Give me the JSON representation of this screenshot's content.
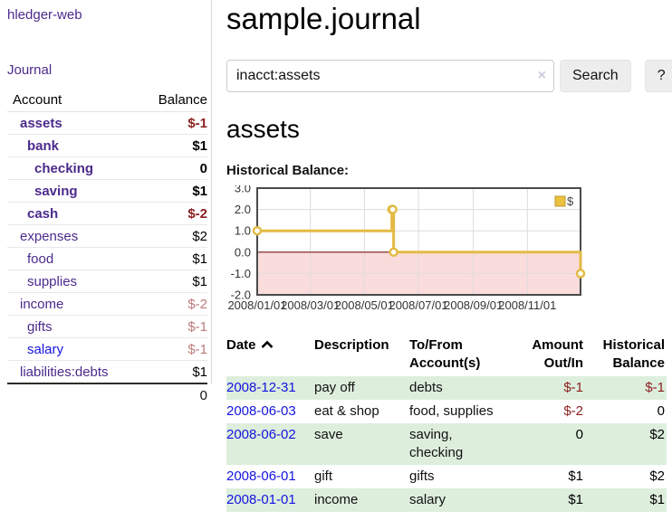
{
  "colors": {
    "link_purple": "#4c2a8c",
    "link_blue": "#1414e0",
    "negative_strong": "#8b1e1e",
    "negative_muted": "#bb7b7b",
    "text_black": "#000000",
    "row_stripe_green": "#ddeedd",
    "chart_line": "#e3ba45",
    "chart_legend_fill": "#eac23f",
    "chart_legend_border": "#bf992f",
    "chart_fill_negative": "#fadcdc",
    "chart_zero_line": "#7d1a1a",
    "chart_grid": "#dcdcdc",
    "chart_border": "#4a4a4a",
    "axis_text": "#333333"
  },
  "sidebar": {
    "brand": "hledger-web",
    "journal_link": "Journal",
    "accounts_table": {
      "headers": [
        "Account",
        "Balance"
      ],
      "rows": [
        {
          "name": "assets",
          "depth": 1,
          "bold": true,
          "name_color": "#4c2a8c",
          "balance": "$-1",
          "balance_color": "#8b1e1e"
        },
        {
          "name": "bank",
          "depth": 2,
          "bold": true,
          "name_color": "#4c2a8c",
          "balance": "$1",
          "balance_color": "#000000"
        },
        {
          "name": "checking",
          "depth": 3,
          "bold": true,
          "name_color": "#4c2a8c",
          "balance": "0",
          "balance_color": "#000000"
        },
        {
          "name": "saving",
          "depth": 3,
          "bold": true,
          "name_color": "#4c2a8c",
          "balance": "$1",
          "balance_color": "#000000"
        },
        {
          "name": "cash",
          "depth": 2,
          "bold": true,
          "name_color": "#4c2a8c",
          "balance": "$-2",
          "balance_color": "#8b1e1e"
        },
        {
          "name": "expenses",
          "depth": 1,
          "bold": false,
          "name_color": "#4c2a8c",
          "balance": "$2",
          "balance_color": "#000000"
        },
        {
          "name": "food",
          "depth": 2,
          "bold": false,
          "name_color": "#4c2a8c",
          "balance": "$1",
          "balance_color": "#000000"
        },
        {
          "name": "supplies",
          "depth": 2,
          "bold": false,
          "name_color": "#4c2a8c",
          "balance": "$1",
          "balance_color": "#000000"
        },
        {
          "name": "income",
          "depth": 1,
          "bold": false,
          "name_color": "#4c2a8c",
          "balance": "$-2",
          "balance_color": "#bb7b7b"
        },
        {
          "name": "gifts",
          "depth": 2,
          "bold": false,
          "name_color": "#4c2a8c",
          "balance": "$-1",
          "balance_color": "#bb7b7b"
        },
        {
          "name": "salary",
          "depth": 2,
          "bold": false,
          "name_color": "#1414e0",
          "balance": "$-1",
          "balance_color": "#bb7b7b"
        },
        {
          "name": "liabilities:debts",
          "depth": 1,
          "bold": false,
          "name_color": "#4c2a8c",
          "balance": "$1",
          "balance_color": "#000000"
        }
      ],
      "total": "0"
    }
  },
  "header": {
    "title": "sample.journal"
  },
  "search": {
    "value": "inacct:assets",
    "clear_icon": "×",
    "button_label": "Search",
    "help_label": "?"
  },
  "account_page": {
    "heading": "assets",
    "chart_label": "Historical Balance:"
  },
  "chart_data": {
    "type": "line",
    "style": "step",
    "title": "Historical Balance",
    "xlabel": "",
    "ylabel": "",
    "x_range": [
      "2008-01-01",
      "2008-12-31"
    ],
    "ylim": [
      -2,
      3
    ],
    "yticks": [
      3,
      2,
      1,
      0,
      -1,
      -2
    ],
    "xticks": [
      {
        "date": "2008-01-01",
        "label": "2008/01/01"
      },
      {
        "date": "2008-03-01",
        "label": "2008/03/01"
      },
      {
        "date": "2008-05-01",
        "label": "2008/05/01"
      },
      {
        "date": "2008-07-01",
        "label": "2008/07/01"
      },
      {
        "date": "2008-09-01",
        "label": "2008/09/01"
      },
      {
        "date": "2008-11-01",
        "label": "2008/11/01"
      }
    ],
    "grid": true,
    "legend": {
      "label": "$",
      "position": "top-right"
    },
    "negative_region_shaded": true,
    "series": [
      {
        "name": "$",
        "points": [
          {
            "date": "2008-01-01",
            "value": 1
          },
          {
            "date": "2008-06-01",
            "value": 2
          },
          {
            "date": "2008-06-02",
            "value": 2
          },
          {
            "date": "2008-06-03",
            "value": 0
          },
          {
            "date": "2008-12-31",
            "value": -1
          }
        ]
      }
    ]
  },
  "register_table": {
    "headers": [
      {
        "label": "Date",
        "sorted_ascending": true
      },
      {
        "label": "Description"
      },
      {
        "label": "To/From Account(s)"
      },
      {
        "label": "Amount Out/In",
        "align": "right"
      },
      {
        "label": "Historical Balance",
        "align": "right"
      }
    ],
    "rows": [
      {
        "date": "2008-12-31",
        "description": "pay off",
        "accounts": "debts",
        "amount": "$-1",
        "amount_color": "#8b1e1e",
        "balance": "$-1",
        "balance_color": "#8b1e1e"
      },
      {
        "date": "2008-06-03",
        "description": "eat & shop",
        "accounts": "food, supplies",
        "amount": "$-2",
        "amount_color": "#8b1e1e",
        "balance": "0",
        "balance_color": "#000000"
      },
      {
        "date": "2008-06-02",
        "description": "save",
        "accounts": "saving, checking",
        "amount": "0",
        "amount_color": "#000000",
        "balance": "$2",
        "balance_color": "#000000"
      },
      {
        "date": "2008-06-01",
        "description": "gift",
        "accounts": "gifts",
        "amount": "$1",
        "amount_color": "#000000",
        "balance": "$2",
        "balance_color": "#000000"
      },
      {
        "date": "2008-01-01",
        "description": "income",
        "accounts": "salary",
        "amount": "$1",
        "amount_color": "#000000",
        "balance": "$1",
        "balance_color": "#000000"
      }
    ]
  }
}
